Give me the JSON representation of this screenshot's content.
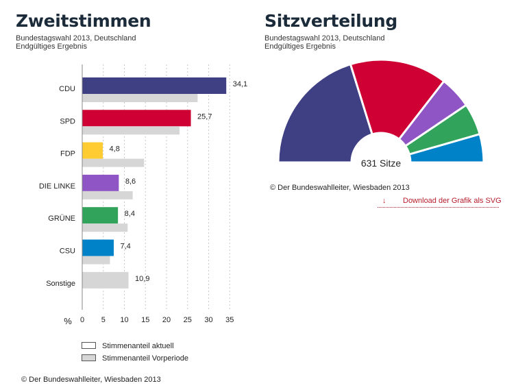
{
  "left": {
    "title": "Zweitstimmen",
    "subtitle1": "Bundestagswahl 2013, Deutschland",
    "subtitle2": "Endgültiges Ergebnis"
  },
  "right": {
    "title": "Sitzverteilung",
    "subtitle1": "Bundestagswahl 2013, Deutschland",
    "subtitle2": "Endgültiges Ergebnis",
    "credit": "© Der Bundeswahlleiter, Wiesbaden 2013",
    "download_label": "Download der Grafik als SVG"
  },
  "footer_credit": "© Der Bundeswahlleiter, Wiesbaden 2013",
  "chart_data": [
    {
      "type": "bar",
      "orientation": "horizontal",
      "categories": [
        "CDU",
        "SPD",
        "FDP",
        "DIE LINKE",
        "GRÜNE",
        "CSU",
        "Sonstige"
      ],
      "series": [
        {
          "name": "Stimmenanteil aktuell",
          "values": [
            34.1,
            25.7,
            4.8,
            8.6,
            8.4,
            7.4,
            null
          ]
        },
        {
          "name": "Stimmenanteil Vorperiode",
          "values": [
            27.3,
            23.0,
            14.6,
            11.9,
            10.7,
            6.5,
            10.9
          ]
        }
      ],
      "data_labels": [
        "34,1",
        "25,7",
        "4,8",
        "8,6",
        "8,4",
        "7,4",
        "10,9"
      ],
      "colors": [
        "#3f3f83",
        "#cf0034",
        "#ffcc33",
        "#9055c4",
        "#31a35b",
        "#0082c8",
        "#d6d6d6"
      ],
      "previous_color": "#d6d6d6",
      "axis_unit_label": "%",
      "xticks": [
        "0",
        "5",
        "10",
        "15",
        "20",
        "25",
        "30",
        "35"
      ],
      "xlim": [
        0,
        35
      ],
      "grid": "vertical dotted",
      "legend_position": "bottom"
    },
    {
      "type": "pie",
      "shape": "half-donut",
      "center_label": "631 Sitze",
      "segments": [
        {
          "name": "CDU",
          "seats": 255,
          "color": "#3f3f83"
        },
        {
          "name": "SPD",
          "seats": 193,
          "color": "#cf0034"
        },
        {
          "name": "DIE LINKE",
          "seats": 64,
          "color": "#9055c4"
        },
        {
          "name": "GRÜNE",
          "seats": 63,
          "color": "#31a35b"
        },
        {
          "name": "CSU",
          "seats": 56,
          "color": "#0082c8"
        }
      ]
    }
  ]
}
